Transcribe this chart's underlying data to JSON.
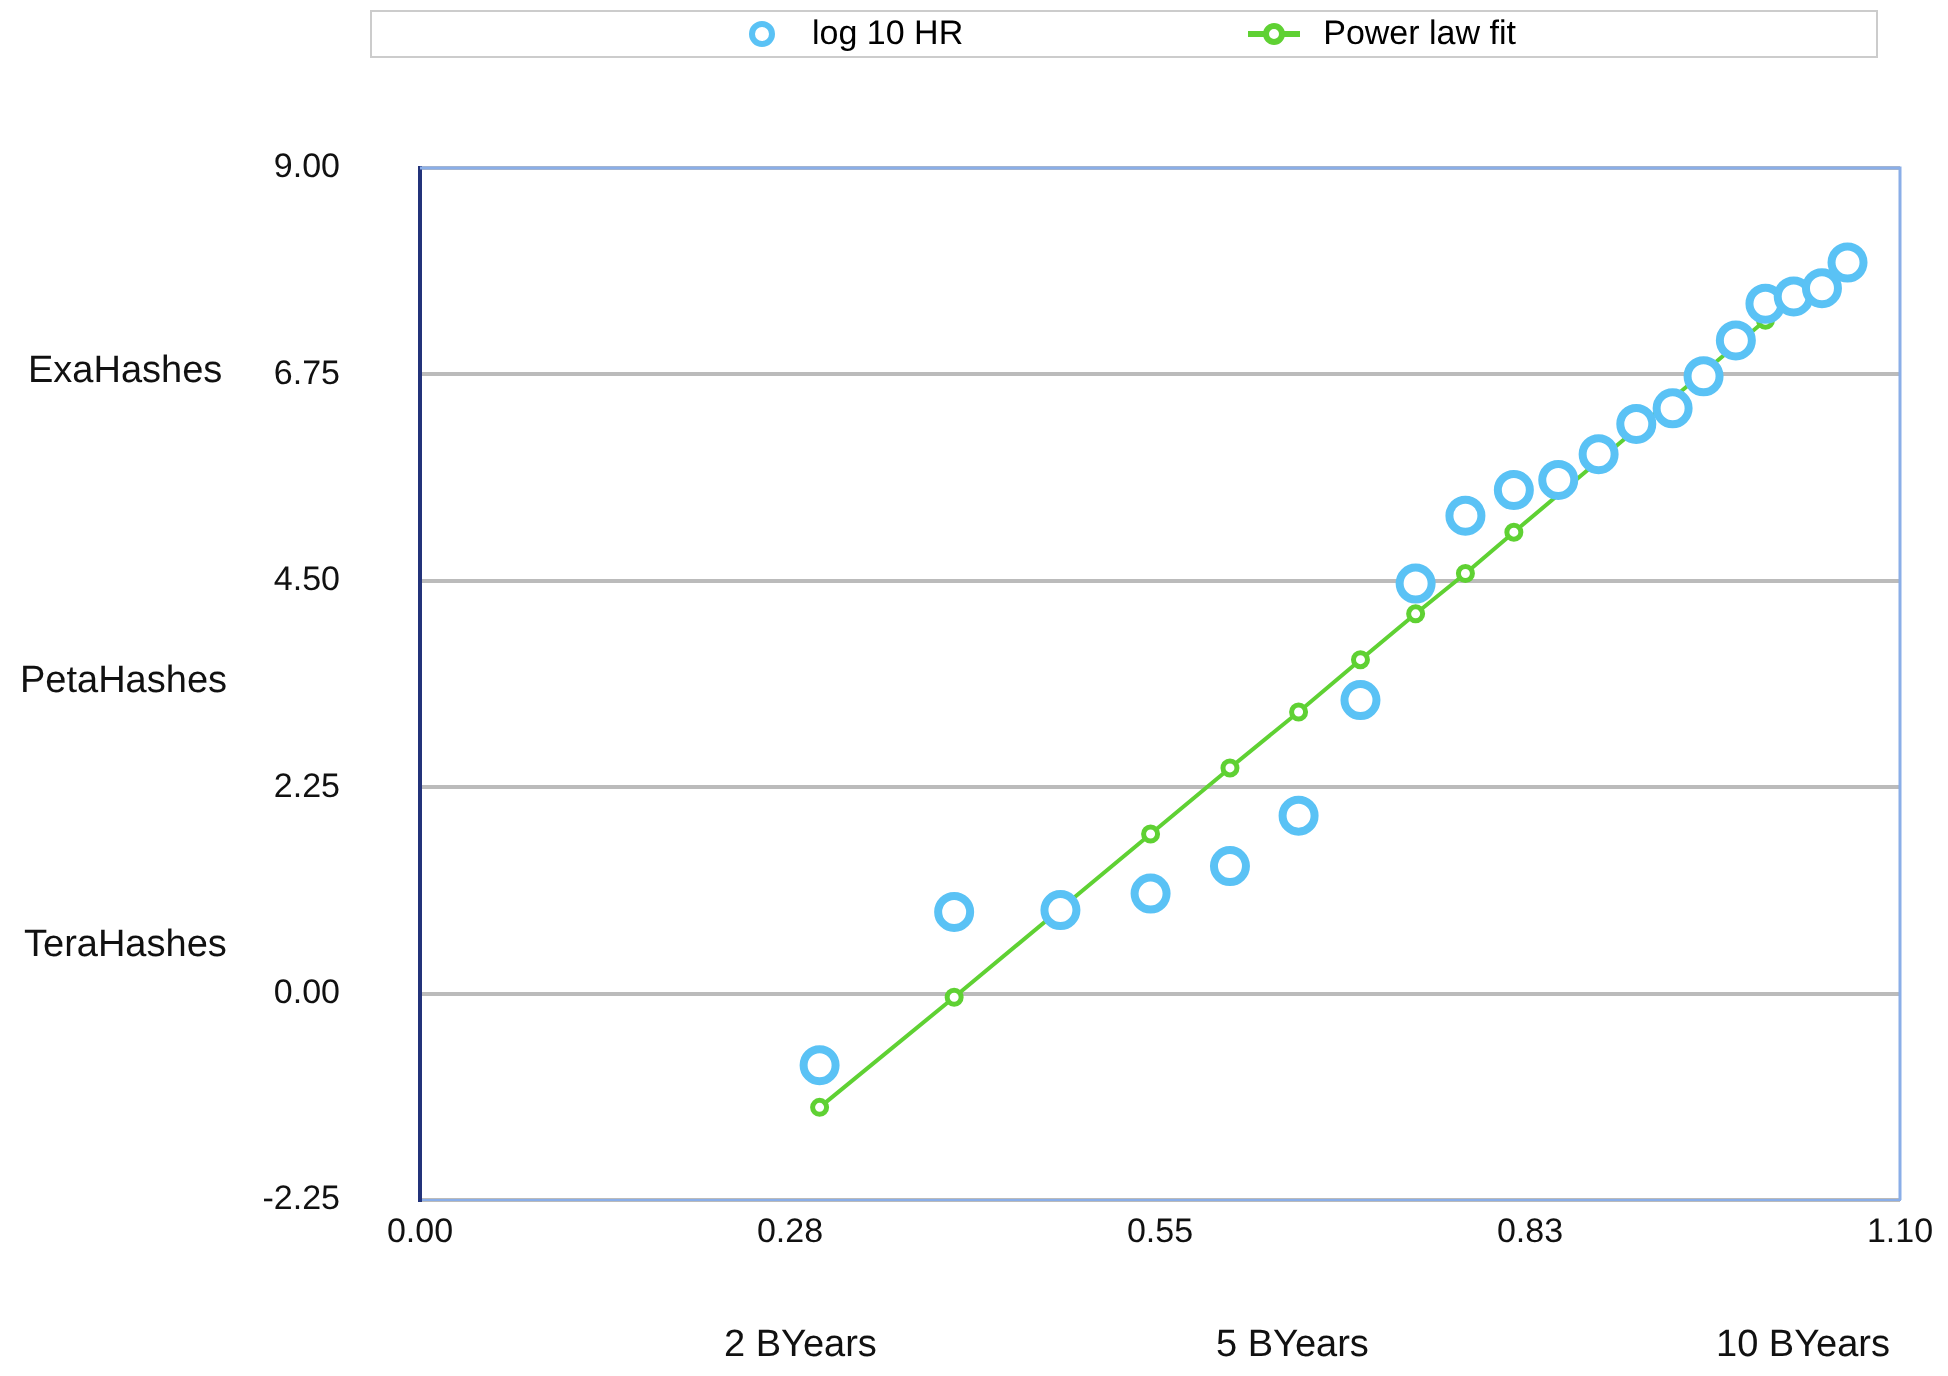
{
  "chart_data": {
    "type": "scatter",
    "legend": "top",
    "grid": "y",
    "xlim": [
      0,
      1.1
    ],
    "ylim": [
      -2.25,
      9
    ],
    "xticks": [
      {
        "value": 0,
        "label": "0.00"
      },
      {
        "value": 0.275,
        "label": "0.28"
      },
      {
        "value": 0.55,
        "label": "0.55"
      },
      {
        "value": 0.825,
        "label": "0.83"
      },
      {
        "value": 1.1,
        "label": "1.10"
      }
    ],
    "yticks": [
      {
        "value": -2.25,
        "label": "-2.25"
      },
      {
        "value": 0,
        "label": "0.00"
      },
      {
        "value": 2.25,
        "label": "2.25"
      },
      {
        "value": 4.5,
        "label": "4.50"
      },
      {
        "value": 6.75,
        "label": "6.75"
      },
      {
        "value": 9,
        "label": "9.00"
      }
    ],
    "annotations": [
      "ExaHashes",
      "PetaHashes",
      "TeraHashes",
      "2 BYears",
      "5 BYears",
      "10 BYears"
    ],
    "series": [
      {
        "name": "log 10 HR",
        "type": "scatter",
        "marker": "circle",
        "color": "#5ac2f5",
        "x": [
          0.297,
          0.397,
          0.476,
          0.543,
          0.602,
          0.653,
          0.699,
          0.74,
          0.777,
          0.813,
          0.846,
          0.876,
          0.904,
          0.931,
          0.954,
          0.978,
          1.0,
          1.021,
          1.042,
          1.061
        ],
        "values": [
          -0.78,
          0.89,
          0.91,
          1.09,
          1.39,
          1.94,
          3.2,
          4.47,
          5.21,
          5.49,
          5.6,
          5.88,
          6.21,
          6.38,
          6.73,
          7.12,
          7.52,
          7.6,
          7.69,
          7.97
        ]
      },
      {
        "name": "Power law fit",
        "type": "line",
        "marker": "circle",
        "line_style": "solid",
        "color": "#5fd133",
        "x": [
          0.297,
          0.397,
          0.476,
          0.543,
          0.602,
          0.653,
          0.699,
          0.74,
          0.777,
          0.813,
          0.846,
          0.876,
          0.904,
          0.931,
          0.954,
          0.978,
          1.0
        ],
        "values": [
          -1.24,
          -0.04,
          null,
          1.74,
          2.46,
          3.07,
          3.64,
          4.14,
          4.58,
          5.03,
          null,
          null,
          null,
          null,
          null,
          null,
          7.34
        ]
      }
    ]
  }
}
